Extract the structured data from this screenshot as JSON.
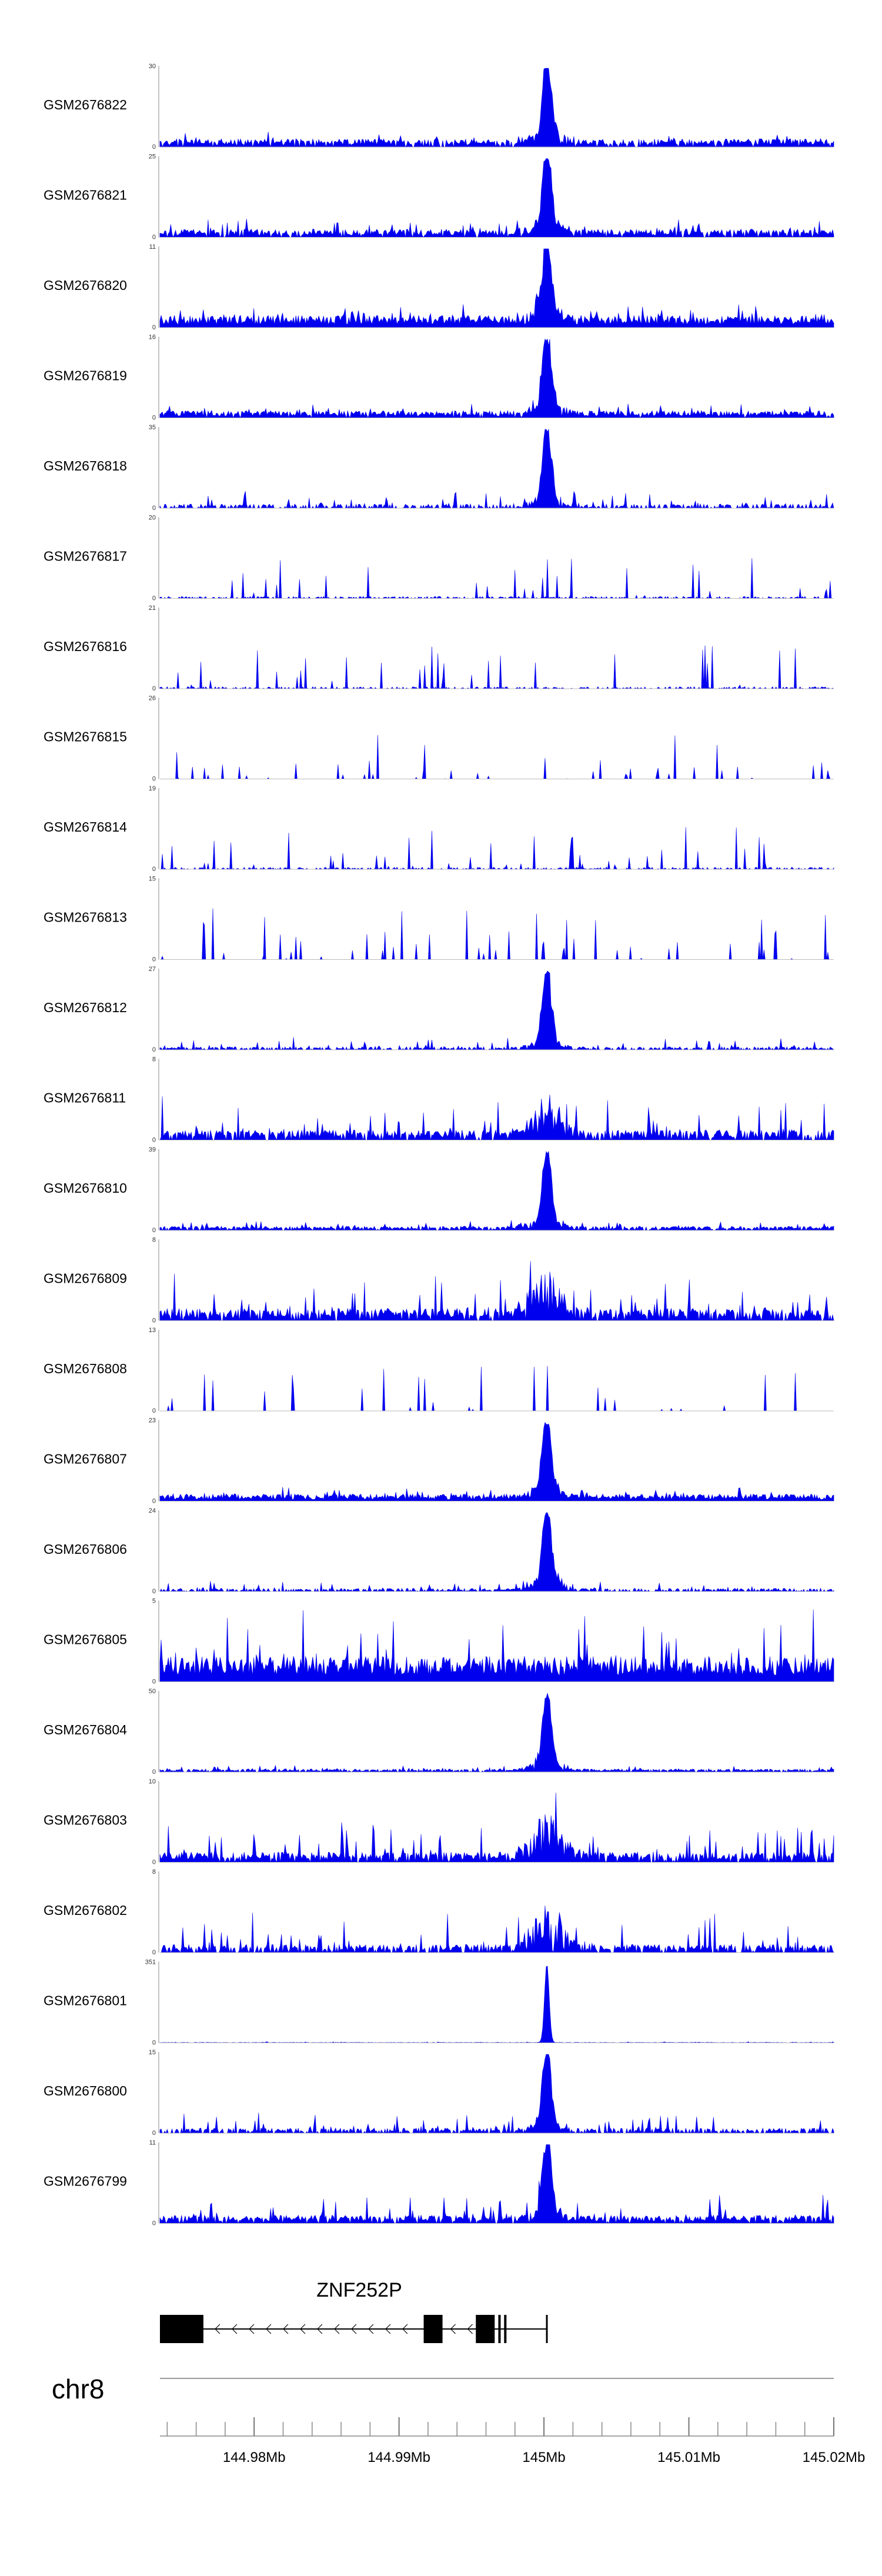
{
  "chart_data": {
    "type": "area",
    "color": "#0000ee",
    "genome_region": {
      "chrom": "chr8",
      "start": 144.9735,
      "end": 145.02,
      "unit": "Mb"
    },
    "x_ticks": [
      "144.98Mb",
      "144.99Mb",
      "145Mb",
      "145.01Mb",
      "145.02Mb"
    ],
    "x_tick_values": [
      144.98,
      144.99,
      145.0,
      145.01,
      145.02
    ],
    "tracks": [
      {
        "name": "GSM2676822",
        "ymax": 30,
        "ylabel_max": "30",
        "ylabel_min": "0",
        "profile": "peak",
        "peak": 145.0002,
        "base": 0.08,
        "noise": 0.1,
        "density": 0.9,
        "seed": 22
      },
      {
        "name": "GSM2676821",
        "ymax": 25,
        "ylabel_max": "25",
        "ylabel_min": "0",
        "profile": "peak",
        "peak": 145.0002,
        "base": 0.08,
        "noise": 0.14,
        "density": 0.9,
        "seed": 21
      },
      {
        "name": "GSM2676820",
        "ymax": 11,
        "ylabel_max": "11",
        "ylabel_min": "0",
        "profile": "peak",
        "peak": 145.0002,
        "base": 0.12,
        "noise": 0.18,
        "density": 1.0,
        "seed": 20
      },
      {
        "name": "GSM2676819",
        "ymax": 16,
        "ylabel_max": "16",
        "ylabel_min": "0",
        "profile": "peak",
        "peak": 145.0002,
        "base": 0.07,
        "noise": 0.12,
        "density": 0.95,
        "seed": 19
      },
      {
        "name": "GSM2676818",
        "ymax": 35,
        "ylabel_max": "35",
        "ylabel_min": "0",
        "profile": "peak",
        "peak": 145.0002,
        "base": 0.04,
        "noise": 0.18,
        "density": 0.55,
        "seed": 18
      },
      {
        "name": "GSM2676817",
        "ymax": 20,
        "ylabel_max": "20",
        "ylabel_min": "0",
        "profile": "sparse",
        "peak": 145.0002,
        "base": 0.02,
        "noise": 0.55,
        "density": 0.45,
        "seed": 17
      },
      {
        "name": "GSM2676816",
        "ymax": 21,
        "ylabel_max": "21",
        "ylabel_min": "0",
        "profile": "sparse",
        "peak": 145.0002,
        "base": 0.02,
        "noise": 0.55,
        "density": 0.4,
        "seed": 16
      },
      {
        "name": "GSM2676815",
        "ymax": 26,
        "ylabel_max": "26",
        "ylabel_min": "0",
        "profile": "sparse",
        "peak": 145.0002,
        "base": 0.0,
        "noise": 0.6,
        "density": 0.3,
        "seed": 15
      },
      {
        "name": "GSM2676814",
        "ymax": 19,
        "ylabel_max": "19",
        "ylabel_min": "0",
        "profile": "sparse",
        "peak": 145.0002,
        "base": 0.02,
        "noise": 0.55,
        "density": 0.45,
        "seed": 14
      },
      {
        "name": "GSM2676813",
        "ymax": 15,
        "ylabel_max": "15",
        "ylabel_min": "0",
        "profile": "sparse",
        "peak": 145.0002,
        "base": 0.0,
        "noise": 0.7,
        "density": 0.3,
        "seed": 13
      },
      {
        "name": "GSM2676812",
        "ymax": 27,
        "ylabel_max": "27",
        "ylabel_min": "0",
        "profile": "peak",
        "peak": 145.0002,
        "base": 0.03,
        "noise": 0.12,
        "density": 0.6,
        "seed": 12
      },
      {
        "name": "GSM2676811",
        "ymax": 8,
        "ylabel_max": "8",
        "ylabel_min": "0",
        "profile": "broad",
        "peak": 145.0002,
        "base": 0.1,
        "noise": 0.45,
        "density": 0.8,
        "seed": 11
      },
      {
        "name": "GSM2676810",
        "ymax": 39,
        "ylabel_max": "39",
        "ylabel_min": "0",
        "profile": "peak",
        "peak": 145.0002,
        "base": 0.04,
        "noise": 0.08,
        "density": 0.9,
        "seed": 10
      },
      {
        "name": "GSM2676809",
        "ymax": 8,
        "ylabel_max": "8",
        "ylabel_min": "0",
        "profile": "broad",
        "peak": 145.0002,
        "base": 0.12,
        "noise": 0.45,
        "density": 0.85,
        "seed": 9
      },
      {
        "name": "GSM2676808",
        "ymax": 13,
        "ylabel_max": "13",
        "ylabel_min": "0",
        "profile": "sparse",
        "peak": 145.0002,
        "base": 0.0,
        "noise": 0.6,
        "density": 0.35,
        "seed": 8
      },
      {
        "name": "GSM2676807",
        "ymax": 23,
        "ylabel_max": "23",
        "ylabel_min": "0",
        "profile": "peak",
        "peak": 145.0002,
        "base": 0.07,
        "noise": 0.12,
        "density": 1.0,
        "seed": 7
      },
      {
        "name": "GSM2676806",
        "ymax": 24,
        "ylabel_max": "24",
        "ylabel_min": "0",
        "profile": "peak",
        "peak": 145.0002,
        "base": 0.03,
        "noise": 0.12,
        "density": 0.65,
        "seed": 6
      },
      {
        "name": "GSM2676805",
        "ymax": 5,
        "ylabel_max": "5",
        "ylabel_min": "0",
        "profile": "dense",
        "peak": 145.0002,
        "base": 0.25,
        "noise": 0.7,
        "density": 1.0,
        "seed": 5
      },
      {
        "name": "GSM2676804",
        "ymax": 50,
        "ylabel_max": "50",
        "ylabel_min": "0",
        "profile": "peak",
        "peak": 145.0002,
        "base": 0.03,
        "noise": 0.05,
        "density": 0.9,
        "seed": 4
      },
      {
        "name": "GSM2676803",
        "ymax": 10,
        "ylabel_max": "10",
        "ylabel_min": "0",
        "profile": "broad",
        "peak": 145.0002,
        "base": 0.1,
        "noise": 0.4,
        "density": 0.85,
        "seed": 3
      },
      {
        "name": "GSM2676802",
        "ymax": 8,
        "ylabel_max": "8",
        "ylabel_min": "0",
        "profile": "broad",
        "peak": 145.0002,
        "base": 0.08,
        "noise": 0.45,
        "density": 0.75,
        "seed": 2
      },
      {
        "name": "GSM2676801",
        "ymax": 351,
        "ylabel_max": "351",
        "ylabel_min": "0",
        "profile": "spike",
        "peak": 145.0002,
        "base": 0.005,
        "noise": 0.01,
        "density": 1.0,
        "seed": 1
      },
      {
        "name": "GSM2676800",
        "ymax": 15,
        "ylabel_max": "15",
        "ylabel_min": "0",
        "profile": "peak",
        "peak": 145.0002,
        "base": 0.05,
        "noise": 0.2,
        "density": 0.7,
        "seed": 100
      },
      {
        "name": "GSM2676799",
        "ymax": 11,
        "ylabel_max": "11",
        "ylabel_min": "0",
        "profile": "peak",
        "peak": 145.0002,
        "base": 0.08,
        "noise": 0.28,
        "density": 0.9,
        "seed": 99
      }
    ],
    "gene": {
      "name": "ZNF252P",
      "strand": "-",
      "start": 144.9735,
      "end": 145.0002,
      "exons": [
        [
          144.9735,
          144.9765
        ],
        [
          144.9917,
          144.993
        ],
        [
          144.9953,
          144.9966
        ],
        [
          144.99685,
          144.997
        ],
        [
          144.99725,
          144.9974
        ]
      ]
    },
    "chromosome_label": "chr8",
    "grid": false
  }
}
